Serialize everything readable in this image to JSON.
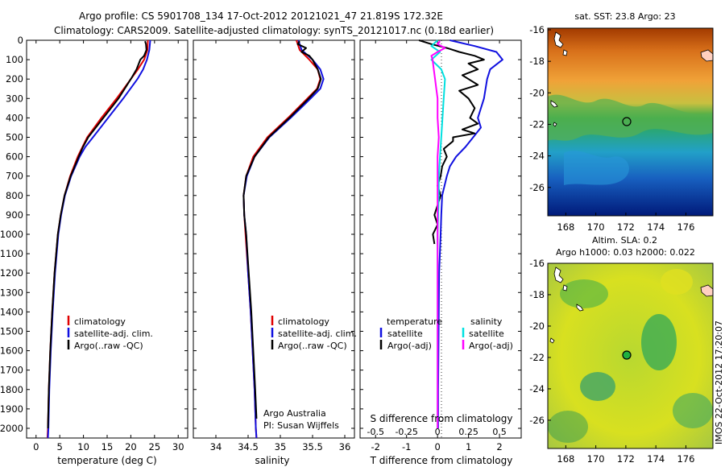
{
  "title_line1": "Argo profile: CS 5901708_134 17-Oct-2012 20121021_47 21.819S 172.32E",
  "title_line2": "Climatology: CARS2009. Satellite-adjusted climatology: synTS_20121017.nc (0.18d earlier)",
  "colors": {
    "climatology": "#e00000",
    "satellite": "#1010e0",
    "argo": "#000000",
    "sat_salinity": "#00e0e0",
    "argo_salinity_adj": "#ff00ff"
  },
  "depth_ticks": [
    "0",
    "100",
    "200",
    "300",
    "400",
    "500",
    "600",
    "700",
    "800",
    "900",
    "1000",
    "1100",
    "1200",
    "1300",
    "1400",
    "1500",
    "1600",
    "1700",
    "1800",
    "1900",
    "2000"
  ],
  "legend": {
    "climatology": "climatology",
    "satellite": "satellite-adj. clim.",
    "argo": "Argo(..raw -QC)"
  },
  "diff_legend": {
    "temperature_header": "temperature",
    "salinity_header": "salinity",
    "t_satellite": "satellite",
    "t_argo": "Argo(-adj)",
    "s_satellite": "satellite",
    "s_argo": "Argo(-adj)"
  },
  "credit_line1": "Argo Australia",
  "credit_line2": "PI: Susan Wijffels",
  "map_sst_title": "sat. SST: 23.8 Argo: 23",
  "map_sla_title1": "Altim. SLA: 0.2",
  "map_sla_title2": "Argo h1000: 0.03 h2000: 0.022",
  "imos_stamp": "IMOS 22-Oct-2012 17:20:07",
  "map_lat_ticks": [
    "-16",
    "-18",
    "-20",
    "-22",
    "-24",
    "-26"
  ],
  "map_lon_ticks": [
    "168",
    "170",
    "172",
    "174",
    "176"
  ],
  "chart_data": [
    {
      "type": "line",
      "name": "temperature_panel",
      "xlabel": "temperature (deg C)",
      "x_ticks": [
        "0",
        "5",
        "10",
        "15",
        "20",
        "25",
        "30"
      ],
      "xlim": [
        -2,
        32
      ],
      "ylim": [
        0,
        2050
      ],
      "series": [
        {
          "name": "climatology",
          "depth": [
            0,
            50,
            100,
            150,
            200,
            300,
            400,
            500,
            550,
            600,
            700,
            800,
            900,
            1000,
            1200,
            1400,
            1600,
            1800,
            2000,
            2050
          ],
          "values": [
            23.6,
            23.5,
            22.8,
            21.5,
            20.0,
            17.0,
            13.8,
            10.8,
            9.8,
            8.8,
            7.2,
            6.0,
            5.2,
            4.6,
            3.9,
            3.4,
            3.0,
            2.7,
            2.5,
            2.4
          ]
        },
        {
          "name": "satellite-adj. clim.",
          "depth": [
            0,
            50,
            100,
            150,
            200,
            300,
            400,
            500,
            550,
            600,
            700,
            800,
            900,
            1000,
            1200,
            1400,
            1600,
            1800,
            2000,
            2050
          ],
          "values": [
            24.1,
            23.9,
            23.4,
            22.6,
            21.4,
            18.4,
            15.2,
            12.0,
            10.4,
            9.2,
            7.4,
            6.1,
            5.3,
            4.7,
            4.0,
            3.5,
            3.1,
            2.8,
            2.6,
            2.5
          ]
        },
        {
          "name": "Argo(..raw -QC)",
          "depth": [
            5,
            20,
            50,
            80,
            100,
            150,
            200,
            300,
            400,
            500,
            550,
            600,
            700,
            800,
            900,
            1000,
            1200,
            1400,
            1600,
            1800,
            2000
          ],
          "values": [
            23.0,
            23.2,
            23.3,
            22.8,
            22.0,
            21.2,
            20.0,
            17.4,
            14.2,
            11.0,
            9.9,
            9.0,
            7.3,
            6.0,
            5.2,
            4.6,
            3.9,
            3.4,
            3.0,
            2.7,
            2.5
          ]
        }
      ]
    },
    {
      "type": "line",
      "name": "salinity_panel",
      "xlabel": "salinity",
      "x_ticks": [
        "34",
        "34.5",
        "35",
        "35.5",
        "36"
      ],
      "xlim": [
        33.65,
        36.15
      ],
      "ylim": [
        0,
        2050
      ],
      "series": [
        {
          "name": "climatology",
          "depth": [
            0,
            50,
            100,
            150,
            200,
            250,
            300,
            400,
            500,
            600,
            700,
            800,
            900,
            1000,
            1200,
            1400,
            1600,
            1800,
            2000,
            2050
          ],
          "values": [
            35.25,
            35.3,
            35.45,
            35.58,
            35.62,
            35.57,
            35.42,
            35.12,
            34.8,
            34.58,
            34.47,
            34.43,
            34.44,
            34.46,
            34.5,
            34.54,
            34.57,
            34.6,
            34.62,
            34.63
          ]
        },
        {
          "name": "satellite-adj. clim.",
          "depth": [
            0,
            50,
            100,
            150,
            200,
            250,
            300,
            400,
            500,
            600,
            700,
            800,
            900,
            1000,
            1200,
            1400,
            1600,
            1800,
            2000,
            2050
          ],
          "values": [
            35.28,
            35.33,
            35.5,
            35.62,
            35.67,
            35.62,
            35.47,
            35.16,
            34.83,
            34.6,
            34.48,
            34.43,
            34.44,
            34.47,
            34.5,
            34.54,
            34.57,
            34.6,
            34.62,
            34.63
          ]
        },
        {
          "name": "Argo(..raw -QC)",
          "depth": [
            5,
            20,
            40,
            60,
            80,
            100,
            150,
            200,
            250,
            300,
            400,
            500,
            600,
            700,
            800,
            900,
            1000,
            1200,
            1400,
            1600,
            1800,
            1950
          ],
          "values": [
            35.3,
            35.27,
            35.4,
            35.33,
            35.45,
            35.5,
            35.58,
            35.63,
            35.58,
            35.44,
            35.14,
            34.82,
            34.6,
            34.47,
            34.43,
            34.44,
            34.47,
            34.51,
            34.55,
            34.58,
            34.61,
            34.63
          ]
        }
      ]
    },
    {
      "type": "line",
      "name": "difference_panel",
      "xlabel": "T difference from climatology",
      "xlabel_top": "S difference from climatology",
      "x_ticks": [
        "-2",
        "-1",
        "0",
        "1",
        "2"
      ],
      "x_ticks_s": [
        "-0.5",
        "-0.25",
        "0",
        "0.25",
        "0.5"
      ],
      "xlim": [
        -2.5,
        2.7
      ],
      "ylim": [
        0,
        2050
      ],
      "series": [
        {
          "name": "T satellite",
          "depth": [
            0,
            30,
            60,
            100,
            150,
            200,
            300,
            400,
            450,
            500,
            550,
            600,
            650,
            700,
            800,
            900,
            1000,
            1200,
            1400,
            1600,
            1800,
            2000
          ],
          "values": [
            0.4,
            1.2,
            1.9,
            2.1,
            1.7,
            1.6,
            1.5,
            1.3,
            1.4,
            1.15,
            0.9,
            0.6,
            0.4,
            0.3,
            0.15,
            0.12,
            0.1,
            0.05,
            0.04,
            0.03,
            0.02,
            0.02
          ]
        },
        {
          "name": "T Argo(-adj)",
          "depth": [
            0,
            20,
            40,
            60,
            80,
            100,
            120,
            150,
            180,
            200,
            230,
            260,
            300,
            350,
            400,
            430,
            460,
            480,
            500,
            520,
            560,
            600,
            650,
            700,
            750,
            800,
            850,
            900,
            950,
            1000,
            1050
          ],
          "values": [
            -0.6,
            -0.2,
            0.3,
            0.7,
            1.2,
            1.5,
            1.0,
            1.3,
            0.8,
            1.0,
            1.3,
            0.7,
            1.0,
            1.2,
            1.05,
            1.3,
            0.8,
            1.2,
            0.5,
            0.5,
            0.2,
            0.3,
            0.15,
            0.1,
            0.0,
            0.1,
            0.0,
            -0.1,
            0.0,
            -0.15,
            -0.1
          ]
        },
        {
          "name": "S satellite",
          "depth": [
            0,
            30,
            60,
            100,
            150,
            200,
            300,
            400,
            500,
            600,
            700,
            800,
            1000,
            1200,
            1400,
            1600,
            1800,
            2000
          ],
          "values": [
            0.0,
            -0.05,
            0.02,
            -0.05,
            0.03,
            0.06,
            0.05,
            0.04,
            0.03,
            0.02,
            0.01,
            0.01,
            0.0,
            0.0,
            0.0,
            0.0,
            0.0,
            0.0
          ]
        },
        {
          "name": "S Argo(-adj)",
          "depth": [
            5,
            20,
            40,
            60,
            80,
            100,
            150,
            200,
            250,
            300,
            400,
            500,
            600,
            700,
            800,
            1000,
            1200,
            1400,
            1600,
            1800,
            2000
          ],
          "values": [
            0.02,
            0.0,
            0.06,
            0.0,
            -0.05,
            -0.04,
            -0.03,
            -0.02,
            -0.01,
            0.0,
            0.0,
            0.01,
            0.0,
            0.0,
            0.0,
            0.0,
            0.0,
            0.0,
            0.0,
            0.0,
            0.0
          ]
        }
      ]
    }
  ]
}
